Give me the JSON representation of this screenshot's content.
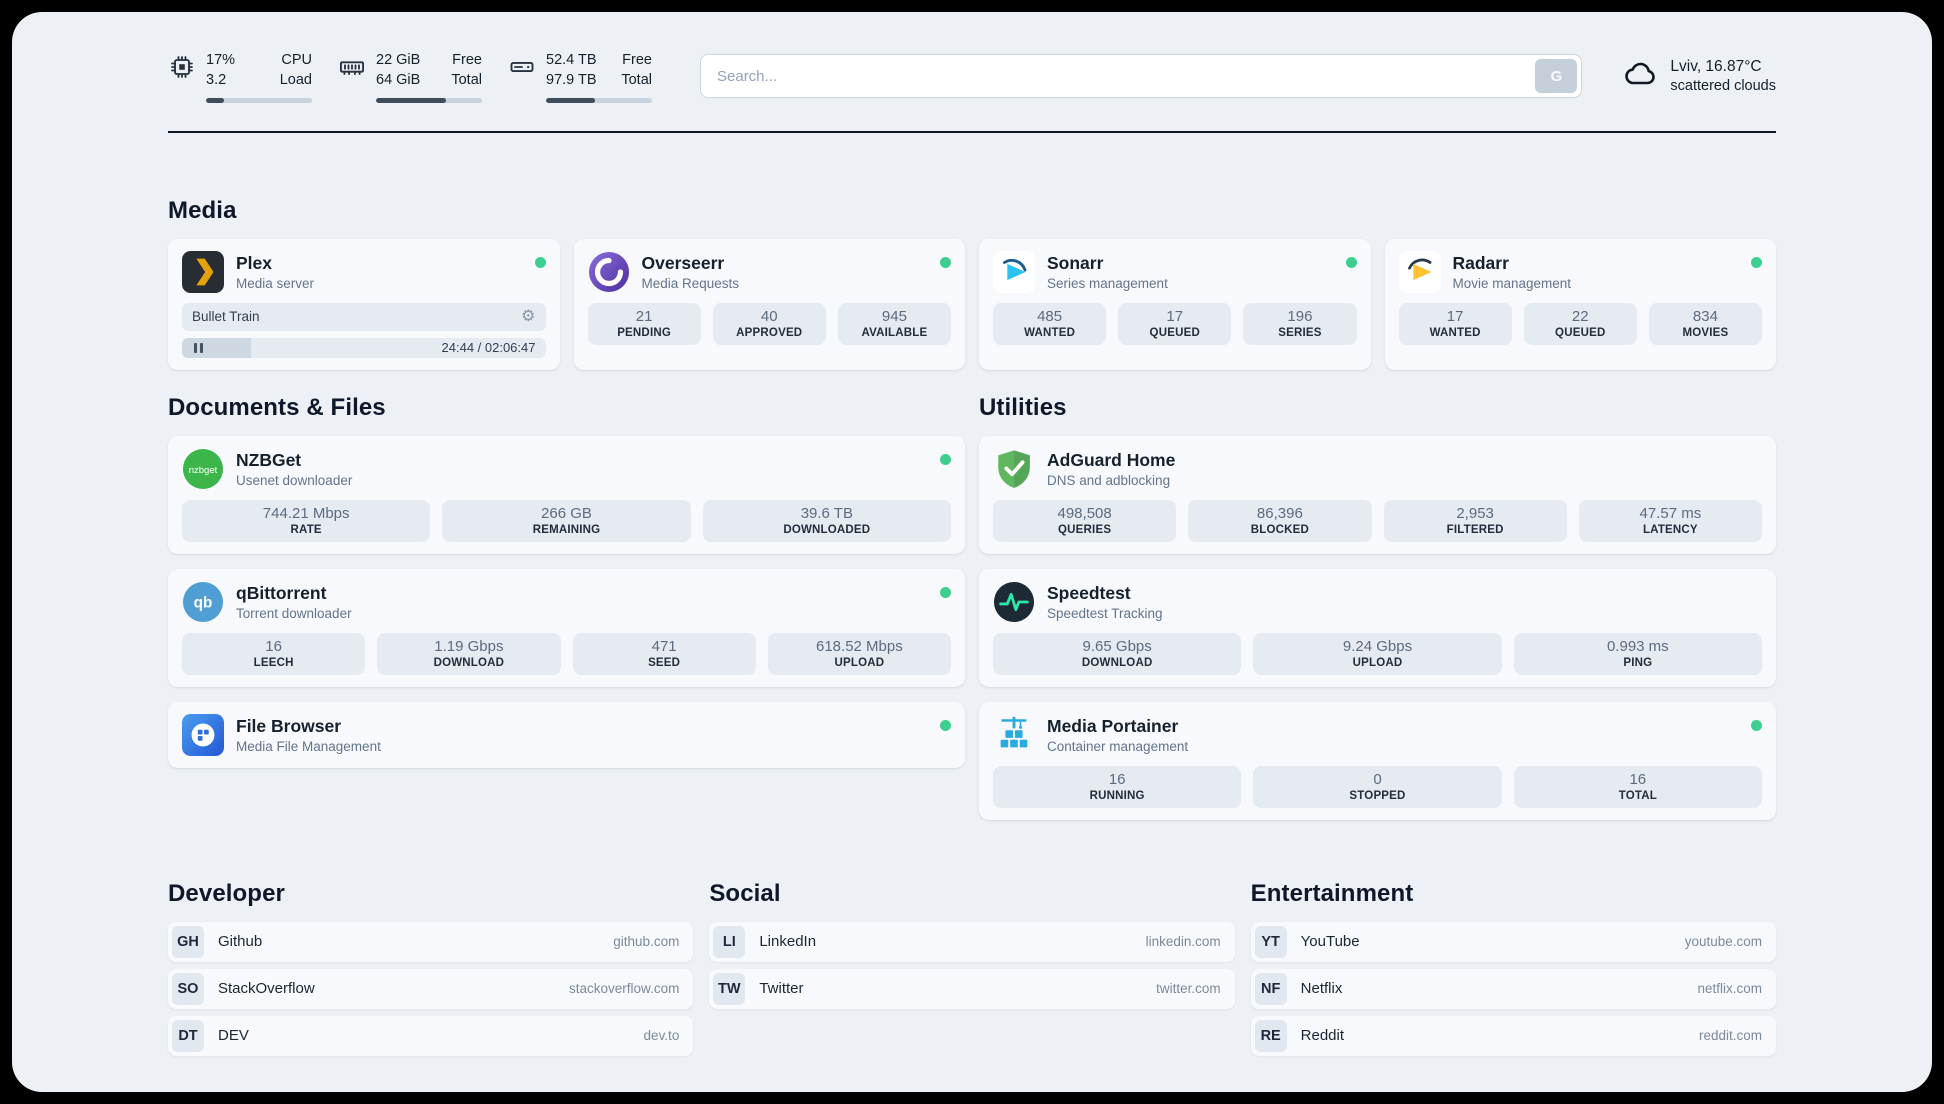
{
  "theme": {
    "accent_green": "#3ecf8e",
    "page_bg": "#edf1f5",
    "card_bg": "#f7f9fc",
    "stat_bg": "#e6ebf2",
    "bar_fill": "#3f4c5c"
  },
  "icons": {
    "gear": "⚙",
    "nzbget_text": "nzbget",
    "qbittorrent_text": "qb"
  },
  "header": {
    "cpu": {
      "value1": "17%",
      "value2": "3.2",
      "label1": "CPU",
      "label2": "Load",
      "progress": 17
    },
    "memory": {
      "value1": "22 GiB",
      "value2": "64 GiB",
      "label1": "Free",
      "label2": "Total",
      "progress": 66
    },
    "disk": {
      "value1": "52.4 TB",
      "value2": "97.9 TB",
      "label1": "Free",
      "label2": "Total",
      "progress": 46
    },
    "search": {
      "placeholder": "Search...",
      "button_label": "G"
    },
    "weather": {
      "location": "Lviv, 16.87°C",
      "condition": "scattered clouds"
    }
  },
  "media": {
    "title": "Media",
    "plex": {
      "name": "Plex",
      "subtitle": "Media server",
      "now_playing": "Bullet Train",
      "time": "24:44 / 02:06:47",
      "progress": 19
    },
    "overseerr": {
      "name": "Overseerr",
      "subtitle": "Media Requests",
      "stats": [
        {
          "value": "21",
          "label": "PENDING"
        },
        {
          "value": "40",
          "label": "APPROVED"
        },
        {
          "value": "945",
          "label": "AVAILABLE"
        }
      ]
    },
    "sonarr": {
      "name": "Sonarr",
      "subtitle": "Series management",
      "stats": [
        {
          "value": "485",
          "label": "WANTED"
        },
        {
          "value": "17",
          "label": "QUEUED"
        },
        {
          "value": "196",
          "label": "SERIES"
        }
      ]
    },
    "radarr": {
      "name": "Radarr",
      "subtitle": "Movie management",
      "stats": [
        {
          "value": "17",
          "label": "WANTED"
        },
        {
          "value": "22",
          "label": "QUEUED"
        },
        {
          "value": "834",
          "label": "MOVIES"
        }
      ]
    }
  },
  "documents": {
    "title": "Documents & Files",
    "nzbget": {
      "name": "NZBGet",
      "subtitle": "Usenet downloader",
      "stats": [
        {
          "value": "744.21 Mbps",
          "label": "RATE"
        },
        {
          "value": "266 GB",
          "label": "REMAINING"
        },
        {
          "value": "39.6 TB",
          "label": "DOWNLOADED"
        }
      ]
    },
    "qbittorrent": {
      "name": "qBittorrent",
      "subtitle": "Torrent downloader",
      "stats": [
        {
          "value": "16",
          "label": "LEECH"
        },
        {
          "value": "1.19 Gbps",
          "label": "DOWNLOAD"
        },
        {
          "value": "471",
          "label": "SEED"
        },
        {
          "value": "618.52 Mbps",
          "label": "UPLOAD"
        }
      ]
    },
    "filebrowser": {
      "name": "File Browser",
      "subtitle": "Media File Management"
    }
  },
  "utilities": {
    "title": "Utilities",
    "adguard": {
      "name": "AdGuard Home",
      "subtitle": "DNS and adblocking",
      "stats": [
        {
          "value": "498,508",
          "label": "QUERIES"
        },
        {
          "value": "86,396",
          "label": "BLOCKED"
        },
        {
          "value": "2,953",
          "label": "FILTERED"
        },
        {
          "value": "47.57 ms",
          "label": "LATENCY"
        }
      ]
    },
    "speedtest": {
      "name": "Speedtest",
      "subtitle": "Speedtest Tracking",
      "stats": [
        {
          "value": "9.65 Gbps",
          "label": "DOWNLOAD"
        },
        {
          "value": "9.24 Gbps",
          "label": "UPLOAD"
        },
        {
          "value": "0.993 ms",
          "label": "PING"
        }
      ]
    },
    "portainer": {
      "name": "Media Portainer",
      "subtitle": "Container management",
      "stats": [
        {
          "value": "16",
          "label": "RUNNING"
        },
        {
          "value": "0",
          "label": "STOPPED"
        },
        {
          "value": "16",
          "label": "TOTAL"
        }
      ]
    }
  },
  "bookmarks": {
    "developer": {
      "title": "Developer",
      "items": [
        {
          "abbr": "GH",
          "name": "Github",
          "url": "github.com"
        },
        {
          "abbr": "SO",
          "name": "StackOverflow",
          "url": "stackoverflow.com"
        },
        {
          "abbr": "DT",
          "name": "DEV",
          "url": "dev.to"
        }
      ]
    },
    "social": {
      "title": "Social",
      "items": [
        {
          "abbr": "LI",
          "name": "LinkedIn",
          "url": "linkedin.com"
        },
        {
          "abbr": "TW",
          "name": "Twitter",
          "url": "twitter.com"
        }
      ]
    },
    "entertainment": {
      "title": "Entertainment",
      "items": [
        {
          "abbr": "YT",
          "name": "YouTube",
          "url": "youtube.com"
        },
        {
          "abbr": "NF",
          "name": "Netflix",
          "url": "netflix.com"
        },
        {
          "abbr": "RE",
          "name": "Reddit",
          "url": "reddit.com"
        }
      ]
    }
  }
}
